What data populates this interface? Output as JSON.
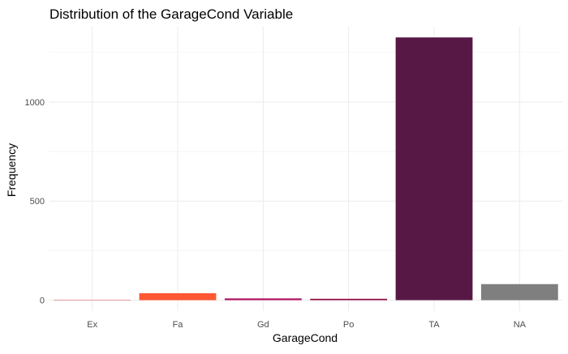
{
  "chart_data": {
    "type": "bar",
    "title": "Distribution of the GarageCond Variable",
    "xlabel": "GarageCond",
    "ylabel": "Frequency",
    "categories": [
      "Ex",
      "Fa",
      "Gd",
      "Po",
      "TA",
      "NA"
    ],
    "values": [
      2,
      35,
      9,
      7,
      1326,
      81
    ],
    "colors": [
      "#d93b54",
      "#ff5733",
      "#b0135e",
      "#900c3f",
      "#581845",
      "#7f7f7f"
    ],
    "yticks": [
      0,
      500,
      1000
    ],
    "ylim": [
      -55,
      1380
    ],
    "grid": true,
    "legend": "none"
  }
}
